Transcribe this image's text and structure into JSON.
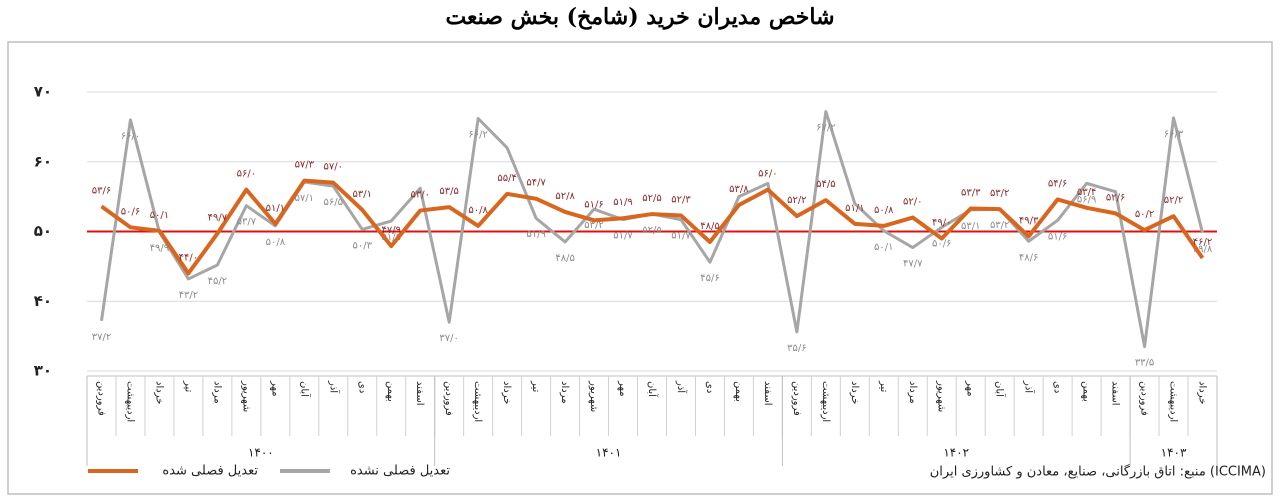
{
  "chart_data": {
    "type": "line",
    "title": "شاخص مدیران خرید (شامخ) بخش صنعت",
    "source": "منبع: اتاق بازرگانی، صنایع، معادن و کشاورزی ایران (ICCIMA)",
    "categories": [
      "فروردین",
      "اردیبهشت",
      "خرداد",
      "تیر",
      "مرداد",
      "شهریور",
      "مهر",
      "آبان",
      "آذر",
      "دی",
      "بهمن",
      "اسفند",
      "فروردین",
      "اردیبهشت",
      "خرداد",
      "تیر",
      "مرداد",
      "شهریور",
      "مهر",
      "آبان",
      "آذر",
      "دی",
      "بهمن",
      "اسفند",
      "فروردین",
      "اردیبهشت",
      "خرداد",
      "تیر",
      "مرداد",
      "شهریور",
      "مهر",
      "آبان",
      "آذر",
      "دی",
      "بهمن",
      "اسفند",
      "فروردین",
      "اردیبهشت",
      "خرداد"
    ],
    "groups": [
      {
        "label": "۱۴۰۰",
        "count": 12
      },
      {
        "label": "۱۴۰۱",
        "count": 12
      },
      {
        "label": "۱۴۰۲",
        "count": 12
      },
      {
        "label": "۱۴۰۳",
        "count": 3
      }
    ],
    "series": [
      {
        "name": "تعدیل فصلی شده",
        "color": "#d9661f",
        "label_color": "#8b2c2c",
        "values": [
          53.6,
          50.6,
          50.1,
          44.0,
          49.7,
          56.0,
          51.1,
          57.3,
          57.0,
          53.1,
          47.9,
          53.0,
          53.5,
          50.8,
          55.4,
          54.7,
          52.8,
          51.6,
          51.9,
          52.5,
          52.3,
          48.5,
          53.8,
          56.0,
          52.2,
          54.5,
          51.1,
          50.8,
          52.0,
          49.0,
          53.3,
          53.2,
          49.3,
          54.6,
          53.4,
          52.6,
          50.2,
          52.2,
          46.2
        ],
        "value_labels": [
          "۵۳/۶",
          "۵۰/۶",
          "۵۰/۱",
          "۴۴/۰",
          "۴۹/۷",
          "۵۶/۰",
          "۵۱/۱",
          "۵۷/۳",
          "۵۷/۰",
          "۵۳/۱",
          "۴۷/۹",
          "۵۳/۰",
          "۵۳/۵",
          "۵۰/۸",
          "۵۵/۴",
          "۵۴/۷",
          "۵۲/۸",
          "۵۱/۶",
          "۵۱/۹",
          "۵۲/۵",
          "۵۲/۳",
          "۴۸/۵",
          "۵۳/۸",
          "۵۶/۰",
          "۵۲/۲",
          "۵۴/۵",
          "۵۱/۱",
          "۵۰/۸",
          "۵۲/۰",
          "۴۹/۰",
          "۵۳/۳",
          "۵۳/۲",
          "۴۹/۳",
          "۵۴/۶",
          "۵۳/۴",
          "۵۲/۶",
          "۵۰/۲",
          "۵۲/۲",
          "۴۶/۲"
        ]
      },
      {
        "name": "تعدیل فصلی نشده",
        "color": "#a6a6a6",
        "label_color": "#8c8c8c",
        "values": [
          37.2,
          66.0,
          49.9,
          43.2,
          45.2,
          53.7,
          50.8,
          57.1,
          56.5,
          50.3,
          51.5,
          56.2,
          37.0,
          66.2,
          62.0,
          51.9,
          48.5,
          53.2,
          51.7,
          52.5,
          51.7,
          45.6,
          55.0,
          56.9,
          35.6,
          67.2,
          54.0,
          50.1,
          47.7,
          50.6,
          53.1,
          53.2,
          48.6,
          51.6,
          56.9,
          55.7,
          33.5,
          66.3,
          49.8
        ],
        "value_labels": [
          "۳۷/۲",
          "۶۶/۰",
          "۴۹/۹",
          "۴۳/۲",
          "۴۵/۲",
          "۵۳/۷",
          "۵۰/۸",
          "۵۷/۱",
          "۵۶/۵",
          "۵۰/۳",
          "۵۱/۵",
          null,
          "۳۷/۰",
          "۶۶/۲",
          null,
          "۵۱/۹",
          "۴۸/۵",
          "۵۳/۲",
          "۵۱/۷",
          "۵۲/۵",
          "۵۱/۷",
          "۴۵/۶",
          null,
          null,
          "۳۵/۶",
          "۶۷/۲",
          null,
          "۵۰/۱",
          "۴۷/۷",
          "۵۰/۶",
          "۵۳/۱",
          "۵۳/۲",
          "۴۸/۶",
          "۵۱/۶",
          "۵۶/۹",
          null,
          "۳۳/۵",
          "۶۶/۳",
          "۴۹/۸"
        ]
      }
    ],
    "ylim": [
      30,
      70
    ],
    "yticks": [
      {
        "value": 30,
        "label": "۳۰"
      },
      {
        "value": 40,
        "label": "۴۰"
      },
      {
        "value": 50,
        "label": "۵۰"
      },
      {
        "value": 60,
        "label": "۶۰"
      },
      {
        "value": 70,
        "label": "۷۰"
      }
    ],
    "grid": true,
    "reference_line": {
      "value": 50,
      "color": "#e01010"
    },
    "legend": "bottom-left"
  }
}
